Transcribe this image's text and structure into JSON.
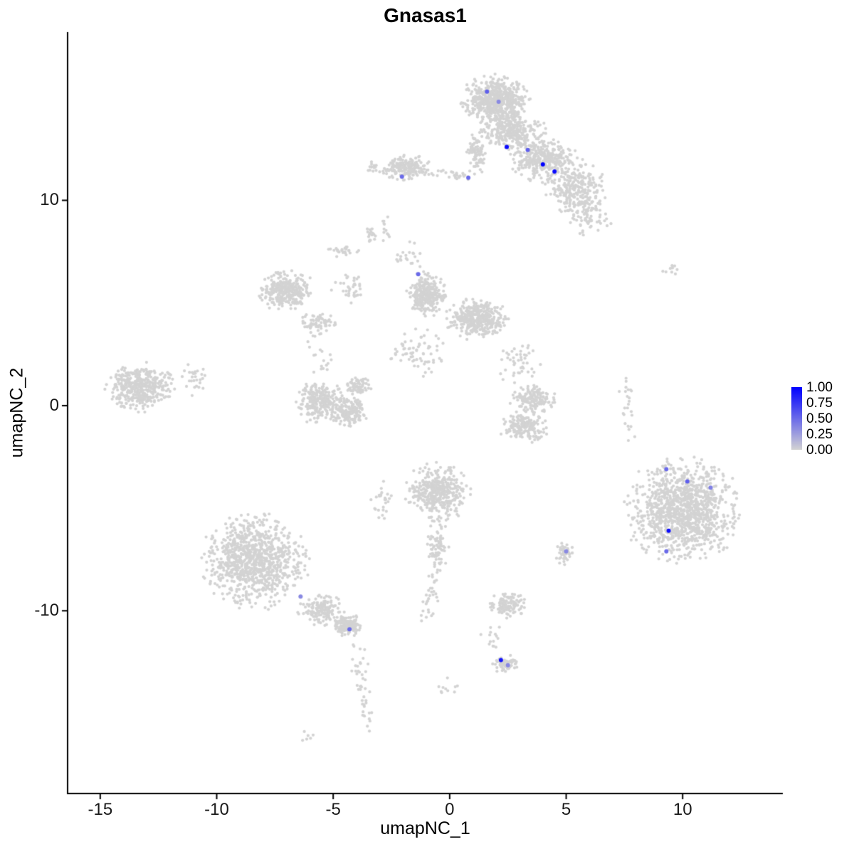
{
  "chart_data": {
    "type": "scatter",
    "title": "Gnasas1",
    "xlabel": "umapNC_1",
    "ylabel": "umapNC_2",
    "xlim": [
      -16.4,
      14.3
    ],
    "ylim": [
      -18.9,
      18.2
    ],
    "x_ticks": [
      -15,
      -10,
      -5,
      0,
      5,
      10
    ],
    "y_ticks": [
      -10,
      0,
      10
    ],
    "grid": false,
    "legend_position": "right",
    "colors": {
      "low": "#D3D3D3",
      "high": "#0000FF",
      "axis": "#000000",
      "text": "#000000"
    },
    "legend": {
      "labels": [
        "1.00",
        "0.75",
        "0.50",
        "0.25",
        "0.00"
      ],
      "values": [
        1.0,
        0.75,
        0.5,
        0.25,
        0.0
      ]
    },
    "background_clusters": [
      {
        "cx": 2.0,
        "cy": 14.9,
        "rx": 1.5,
        "ry": 1.2,
        "n": 600
      },
      {
        "cx": 2.6,
        "cy": 13.4,
        "rx": 1.5,
        "ry": 1.0,
        "n": 300
      },
      {
        "cx": 1.15,
        "cy": 12.3,
        "rx": 0.4,
        "ry": 1.1,
        "n": 90
      },
      {
        "cx": 4.0,
        "cy": 12.0,
        "rx": 1.5,
        "ry": 1.1,
        "n": 330
      },
      {
        "cx": 5.4,
        "cy": 10.6,
        "rx": 1.3,
        "ry": 1.4,
        "n": 260
      },
      {
        "cx": 5.9,
        "cy": 9.2,
        "rx": 1.1,
        "ry": 0.9,
        "n": 70
      },
      {
        "cx": -1.9,
        "cy": 11.6,
        "rx": 1.2,
        "ry": 0.65,
        "n": 180
      },
      {
        "cx": -3.35,
        "cy": 11.6,
        "rx": 0.3,
        "ry": 0.4,
        "n": 14
      },
      {
        "cx": -2.8,
        "cy": 8.8,
        "rx": 0.3,
        "ry": 0.8,
        "n": 12
      },
      {
        "cx": -7.0,
        "cy": 5.6,
        "rx": 1.2,
        "ry": 1.0,
        "n": 300
      },
      {
        "cx": -5.7,
        "cy": 4.0,
        "rx": 0.9,
        "ry": 0.55,
        "n": 70
      },
      {
        "cx": -4.6,
        "cy": 7.5,
        "rx": 0.7,
        "ry": 0.3,
        "n": 26
      },
      {
        "cx": -3.4,
        "cy": 8.4,
        "rx": 0.3,
        "ry": 0.5,
        "n": 16
      },
      {
        "cx": -4.3,
        "cy": 5.8,
        "rx": 0.8,
        "ry": 1.1,
        "n": 35
      },
      {
        "cx": -2.0,
        "cy": 7.2,
        "rx": 0.45,
        "ry": 0.35,
        "n": 10
      },
      {
        "cx": -1.0,
        "cy": 5.4,
        "rx": 0.85,
        "ry": 1.1,
        "n": 300
      },
      {
        "cx": 1.2,
        "cy": 4.2,
        "rx": 1.4,
        "ry": 1.0,
        "n": 380
      },
      {
        "cx": -1.3,
        "cy": 2.6,
        "rx": 1.3,
        "ry": 1.2,
        "n": 70
      },
      {
        "cx": 2.9,
        "cy": 2.1,
        "rx": 1.0,
        "ry": 1.1,
        "n": 45
      },
      {
        "cx": -13.3,
        "cy": 0.9,
        "rx": 1.6,
        "ry": 1.2,
        "n": 400
      },
      {
        "cx": -10.9,
        "cy": 1.3,
        "rx": 0.6,
        "ry": 0.9,
        "n": 28
      },
      {
        "cx": -5.6,
        "cy": 0.2,
        "rx": 1.0,
        "ry": 1.1,
        "n": 260
      },
      {
        "cx": -4.3,
        "cy": -0.3,
        "rx": 0.8,
        "ry": 0.8,
        "n": 170
      },
      {
        "cx": -4.0,
        "cy": 0.9,
        "rx": 0.6,
        "ry": 0.5,
        "n": 70
      },
      {
        "cx": 3.6,
        "cy": 0.3,
        "rx": 1.0,
        "ry": 0.7,
        "n": 160
      },
      {
        "cx": 3.2,
        "cy": -1.0,
        "rx": 1.1,
        "ry": 0.8,
        "n": 180
      },
      {
        "cx": -0.5,
        "cy": -4.2,
        "rx": 1.4,
        "ry": 1.4,
        "n": 400
      },
      {
        "cx": -0.5,
        "cy": -6.9,
        "rx": 0.55,
        "ry": 1.2,
        "n": 80
      },
      {
        "cx": -2.9,
        "cy": -4.6,
        "rx": 0.5,
        "ry": 0.9,
        "n": 26
      },
      {
        "cx": -8.4,
        "cy": -7.6,
        "rx": 2.3,
        "ry": 2.3,
        "n": 950
      },
      {
        "cx": -5.5,
        "cy": -10.0,
        "rx": 1.1,
        "ry": 0.8,
        "n": 150
      },
      {
        "cx": -4.4,
        "cy": -10.7,
        "rx": 0.6,
        "ry": 0.55,
        "n": 140
      },
      {
        "cx": 10.0,
        "cy": -5.1,
        "rx": 2.5,
        "ry": 2.6,
        "n": 1150
      },
      {
        "cx": 9.5,
        "cy": 6.6,
        "rx": 0.4,
        "ry": 0.35,
        "n": 9
      },
      {
        "cx": 4.9,
        "cy": -7.2,
        "rx": 0.4,
        "ry": 0.55,
        "n": 45
      },
      {
        "cx": 2.5,
        "cy": -9.7,
        "rx": 0.85,
        "ry": 0.65,
        "n": 110
      },
      {
        "cx": 2.4,
        "cy": -12.6,
        "rx": 0.55,
        "ry": 0.45,
        "n": 65
      },
      {
        "cx": 1.8,
        "cy": -11.3,
        "rx": 0.5,
        "ry": 0.7,
        "n": 14
      },
      {
        "cx": 0.0,
        "cy": -13.6,
        "rx": 0.6,
        "ry": 0.9,
        "n": 10
      },
      {
        "cx": -6.2,
        "cy": -16.1,
        "rx": 0.35,
        "ry": 0.3,
        "n": 6
      }
    ],
    "background_trails": [
      {
        "x1": -0.9,
        "y1": 11.35,
        "x2": 0.75,
        "y2": 11.2,
        "n": 28,
        "jitter": 0.12
      },
      {
        "x1": -0.6,
        "y1": -8.3,
        "x2": -1.05,
        "y2": -10.4,
        "n": 30,
        "jitter": 0.2
      },
      {
        "x1": -4.0,
        "y1": -11.4,
        "x2": -3.55,
        "y2": -15.7,
        "n": 45,
        "jitter": 0.18
      },
      {
        "x1": 7.55,
        "y1": 1.2,
        "x2": 7.75,
        "y2": -1.9,
        "n": 24,
        "jitter": 0.12
      },
      {
        "x1": -1.6,
        "y1": 8.0,
        "x2": -1.3,
        "y2": 6.5,
        "n": 12,
        "jitter": 0.15
      },
      {
        "x1": -5.8,
        "y1": 3.3,
        "x2": -5.2,
        "y2": 1.6,
        "n": 18,
        "jitter": 0.25
      }
    ],
    "highlight_points": [
      {
        "x": 1.6,
        "y": 15.3,
        "value": 0.55
      },
      {
        "x": 2.1,
        "y": 14.8,
        "value": 0.35
      },
      {
        "x": 2.45,
        "y": 12.6,
        "value": 0.95
      },
      {
        "x": 3.35,
        "y": 12.45,
        "value": 0.55
      },
      {
        "x": 4.0,
        "y": 11.75,
        "value": 1.0
      },
      {
        "x": 4.5,
        "y": 11.4,
        "value": 0.95
      },
      {
        "x": -2.05,
        "y": 11.15,
        "value": 0.5
      },
      {
        "x": 0.8,
        "y": 11.1,
        "value": 0.5
      },
      {
        "x": -1.35,
        "y": 6.4,
        "value": 0.5
      },
      {
        "x": 9.3,
        "y": -3.1,
        "value": 0.5
      },
      {
        "x": 10.2,
        "y": -3.7,
        "value": 0.55
      },
      {
        "x": 11.2,
        "y": -4.0,
        "value": 0.4
      },
      {
        "x": 9.4,
        "y": -6.1,
        "value": 0.95
      },
      {
        "x": 9.3,
        "y": -7.1,
        "value": 0.5
      },
      {
        "x": 5.0,
        "y": -7.1,
        "value": 0.35
      },
      {
        "x": -6.4,
        "y": -9.3,
        "value": 0.35
      },
      {
        "x": -4.3,
        "y": -10.9,
        "value": 0.5
      },
      {
        "x": 2.2,
        "y": -12.4,
        "value": 0.9
      },
      {
        "x": 2.5,
        "y": -12.65,
        "value": 0.35
      }
    ]
  }
}
